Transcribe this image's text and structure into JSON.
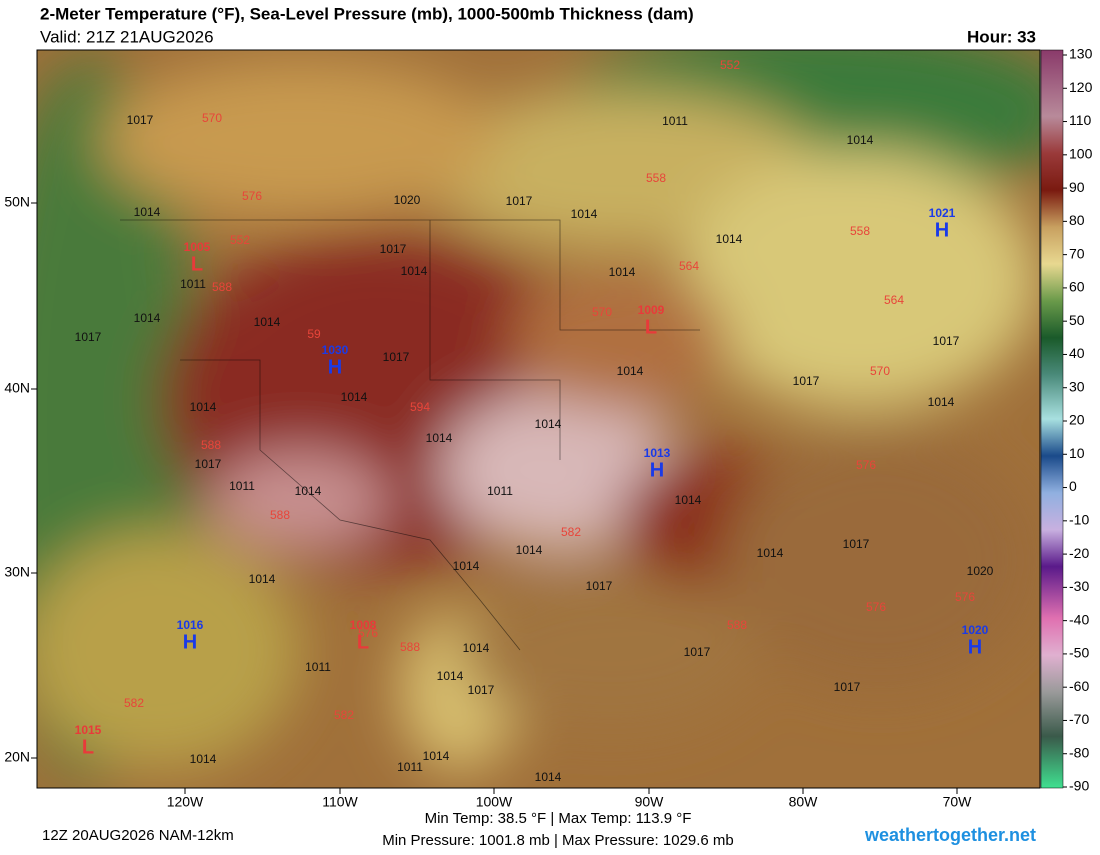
{
  "header": {
    "title": "2-Meter Temperature (°F), Sea-Level Pressure (mb), 1000-500mb Thickness (dam)",
    "valid": "Valid: 21Z 21AUG2026",
    "hour": "Hour: 33"
  },
  "map": {
    "lon_labels": [
      "120W",
      "110W",
      "100W",
      "90W",
      "80W",
      "70W"
    ],
    "lat_labels": [
      "50N",
      "40N",
      "30N",
      "20N"
    ],
    "isobar_labels": [
      1017,
      1011,
      1014,
      1020,
      1017,
      1014,
      1014,
      1014,
      1017,
      1014,
      1014,
      1011,
      1014,
      1014,
      1017,
      1017,
      1017,
      1014,
      1017,
      1014,
      1014,
      1014,
      1014,
      1014,
      1017,
      1011,
      1014,
      1011,
      1014,
      1014,
      1014,
      1017,
      1014,
      1020,
      1017,
      1014,
      1017,
      1014,
      1011,
      1014,
      1017,
      1017,
      1014,
      1014,
      1011,
      1014
    ],
    "thickness_labels": [
      552,
      570,
      558,
      576,
      552,
      558,
      564,
      588,
      564,
      570,
      59,
      594,
      570,
      588,
      576,
      588,
      582,
      576,
      576,
      588,
      588,
      576,
      582,
      582
    ],
    "pressure_centers": [
      {
        "letter": "L",
        "value": 1005
      },
      {
        "letter": "L",
        "value": 1009
      },
      {
        "letter": "H",
        "value": 1030
      },
      {
        "letter": "H",
        "value": 1013
      },
      {
        "letter": "H",
        "value": 1021
      },
      {
        "letter": "H",
        "value": 1016
      },
      {
        "letter": "H",
        "value": 1020
      },
      {
        "letter": "L",
        "value": 1008
      },
      {
        "letter": "L",
        "value": 1015
      }
    ]
  },
  "colorbar": {
    "ticks": [
      130,
      120,
      110,
      100,
      90,
      80,
      70,
      60,
      50,
      40,
      30,
      20,
      10,
      0,
      -10,
      -20,
      -30,
      -40,
      -50,
      -60,
      -70,
      -80,
      -90
    ]
  },
  "footer": {
    "run": "12Z 20AUG2026 NAM-12km",
    "temp_range": "Min Temp:  38.5 °F | Max Temp: 113.9 °F",
    "pressure_range": "Min Pressure: 1001.8 mb | Max Pressure: 1029.6 mb",
    "site": "weathertogether.net"
  }
}
